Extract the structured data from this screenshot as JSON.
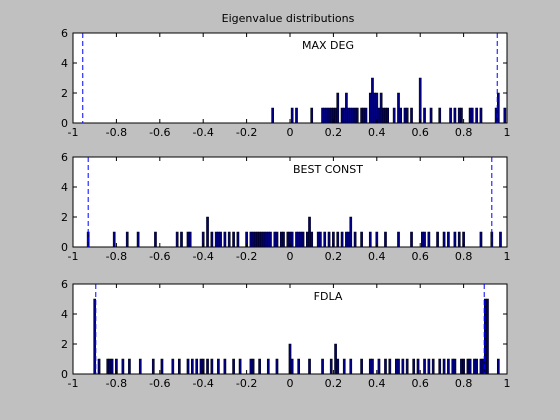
{
  "figure_title": "Eigenvalue distributions",
  "colors": {
    "background": "#c0c0c0",
    "axes_background": "#ffffff",
    "bar_fill": "#000080",
    "bar_edge": "#000000",
    "limit_line": "#0000ff"
  },
  "chart_data": [
    {
      "type": "bar",
      "title": "MAX DEG",
      "xlabel": "",
      "ylabel": "",
      "xlim": [
        -1,
        1
      ],
      "ylim": [
        0,
        6
      ],
      "xticks": [
        -1,
        -0.8,
        -0.6,
        -0.4,
        -0.2,
        0,
        0.2,
        0.4,
        0.6,
        0.8,
        1
      ],
      "xtick_labels": [
        "-1",
        "-0.8",
        "-0.6",
        "-0.4",
        "-0.2",
        "0",
        "0.2",
        "0.4",
        "0.6",
        "0.8",
        "1"
      ],
      "yticks": [
        0,
        2,
        4,
        6
      ],
      "ytick_labels": [
        "0",
        "2",
        "4",
        "6"
      ],
      "grid": false,
      "bar_width": 0.01,
      "limit_lines": [
        -0.955,
        0.955
      ],
      "x": [
        -0.08,
        0.01,
        0.03,
        0.1,
        0.15,
        0.16,
        0.17,
        0.18,
        0.19,
        0.2,
        0.21,
        0.22,
        0.24,
        0.25,
        0.26,
        0.27,
        0.28,
        0.29,
        0.3,
        0.31,
        0.33,
        0.34,
        0.35,
        0.37,
        0.38,
        0.39,
        0.4,
        0.41,
        0.42,
        0.43,
        0.44,
        0.45,
        0.48,
        0.5,
        0.51,
        0.53,
        0.54,
        0.56,
        0.6,
        0.62,
        0.65,
        0.69,
        0.74,
        0.76,
        0.78,
        0.79,
        0.83,
        0.84,
        0.86,
        0.88,
        0.95,
        0.96,
        0.99
      ],
      "values": [
        1,
        1,
        1,
        1,
        1,
        1,
        1,
        1,
        1,
        1,
        1,
        2,
        1,
        1,
        2,
        1,
        1,
        1,
        1,
        1,
        1,
        1,
        1,
        2,
        3,
        2,
        2,
        1,
        2,
        1,
        1,
        1,
        1,
        2,
        1,
        1,
        1,
        1,
        3,
        1,
        1,
        1,
        1,
        1,
        1,
        1,
        1,
        1,
        1,
        1,
        1,
        2,
        1
      ]
    },
    {
      "type": "bar",
      "title": "BEST CONST",
      "xlabel": "",
      "ylabel": "",
      "xlim": [
        -1,
        1
      ],
      "ylim": [
        0,
        6
      ],
      "xticks": [
        -1,
        -0.8,
        -0.6,
        -0.4,
        -0.2,
        0,
        0.2,
        0.4,
        0.6,
        0.8,
        1
      ],
      "xtick_labels": [
        "-1",
        "-0.8",
        "-0.6",
        "-0.4",
        "-0.2",
        "0",
        "0.2",
        "0.4",
        "0.6",
        "0.8",
        "1"
      ],
      "yticks": [
        0,
        2,
        4,
        6
      ],
      "ytick_labels": [
        "0",
        "2",
        "4",
        "6"
      ],
      "grid": false,
      "bar_width": 0.01,
      "limit_lines": [
        -0.93,
        0.93
      ],
      "x": [
        -0.93,
        -0.81,
        -0.75,
        -0.7,
        -0.62,
        -0.52,
        -0.5,
        -0.47,
        -0.46,
        -0.4,
        -0.38,
        -0.36,
        -0.34,
        -0.33,
        -0.32,
        -0.3,
        -0.28,
        -0.26,
        -0.24,
        -0.2,
        -0.18,
        -0.17,
        -0.16,
        -0.15,
        -0.14,
        -0.13,
        -0.12,
        -0.11,
        -0.1,
        -0.09,
        -0.07,
        -0.06,
        -0.04,
        -0.03,
        -0.01,
        0.0,
        0.01,
        0.03,
        0.04,
        0.05,
        0.06,
        0.08,
        0.09,
        0.1,
        0.13,
        0.14,
        0.16,
        0.18,
        0.2,
        0.22,
        0.24,
        0.26,
        0.27,
        0.28,
        0.3,
        0.33,
        0.37,
        0.4,
        0.44,
        0.5,
        0.56,
        0.61,
        0.62,
        0.64,
        0.68,
        0.71,
        0.73,
        0.76,
        0.78,
        0.8,
        0.88,
        0.93,
        0.97
      ],
      "values": [
        1,
        1,
        1,
        1,
        1,
        1,
        1,
        1,
        1,
        1,
        2,
        1,
        1,
        1,
        1,
        1,
        1,
        1,
        1,
        1,
        1,
        1,
        1,
        1,
        1,
        1,
        1,
        1,
        1,
        1,
        1,
        1,
        1,
        1,
        1,
        1,
        1,
        1,
        1,
        1,
        1,
        1,
        2,
        1,
        1,
        1,
        1,
        1,
        1,
        1,
        1,
        1,
        1,
        2,
        1,
        1,
        1,
        1,
        1,
        1,
        1,
        1,
        1,
        1,
        1,
        1,
        1,
        1,
        1,
        1,
        1,
        1,
        1
      ]
    },
    {
      "type": "bar",
      "title": "FDLA",
      "xlabel": "",
      "ylabel": "",
      "xlim": [
        -1,
        1
      ],
      "ylim": [
        0,
        6
      ],
      "xticks": [
        -1,
        -0.8,
        -0.6,
        -0.4,
        -0.2,
        0,
        0.2,
        0.4,
        0.6,
        0.8,
        1
      ],
      "xtick_labels": [
        "-1",
        "-0.8",
        "-0.6",
        "-0.4",
        "-0.2",
        "0",
        "0.2",
        "0.4",
        "0.6",
        "0.8",
        "1"
      ],
      "yticks": [
        0,
        2,
        4,
        6
      ],
      "ytick_labels": [
        "0",
        "2",
        "4",
        "6"
      ],
      "grid": false,
      "bar_width": 0.01,
      "limit_lines": [
        -0.895,
        0.895
      ],
      "x": [
        -0.9,
        -0.88,
        -0.84,
        -0.83,
        -0.82,
        -0.8,
        -0.77,
        -0.74,
        -0.69,
        -0.63,
        -0.59,
        -0.54,
        -0.51,
        -0.47,
        -0.45,
        -0.43,
        -0.41,
        -0.4,
        -0.38,
        -0.36,
        -0.33,
        -0.3,
        -0.26,
        -0.23,
        -0.18,
        -0.17,
        -0.14,
        -0.1,
        -0.06,
        0.0,
        0.01,
        0.04,
        0.09,
        0.15,
        0.19,
        0.21,
        0.22,
        0.25,
        0.28,
        0.33,
        0.37,
        0.38,
        0.41,
        0.44,
        0.46,
        0.49,
        0.5,
        0.52,
        0.54,
        0.57,
        0.59,
        0.62,
        0.64,
        0.66,
        0.69,
        0.71,
        0.73,
        0.75,
        0.76,
        0.79,
        0.8,
        0.82,
        0.83,
        0.85,
        0.86,
        0.88,
        0.89,
        0.9,
        0.91,
        0.96
      ],
      "values": [
        5,
        1,
        1,
        1,
        1,
        1,
        1,
        1,
        1,
        1,
        1,
        1,
        1,
        1,
        1,
        1,
        1,
        1,
        1,
        1,
        1,
        1,
        1,
        1,
        1,
        1,
        1,
        1,
        1,
        2,
        1,
        1,
        1,
        1,
        1,
        2,
        1,
        1,
        1,
        1,
        1,
        1,
        1,
        1,
        1,
        1,
        1,
        1,
        1,
        1,
        1,
        1,
        1,
        1,
        1,
        1,
        1,
        1,
        1,
        1,
        1,
        1,
        1,
        1,
        1,
        1,
        1,
        5,
        5,
        1
      ]
    }
  ]
}
